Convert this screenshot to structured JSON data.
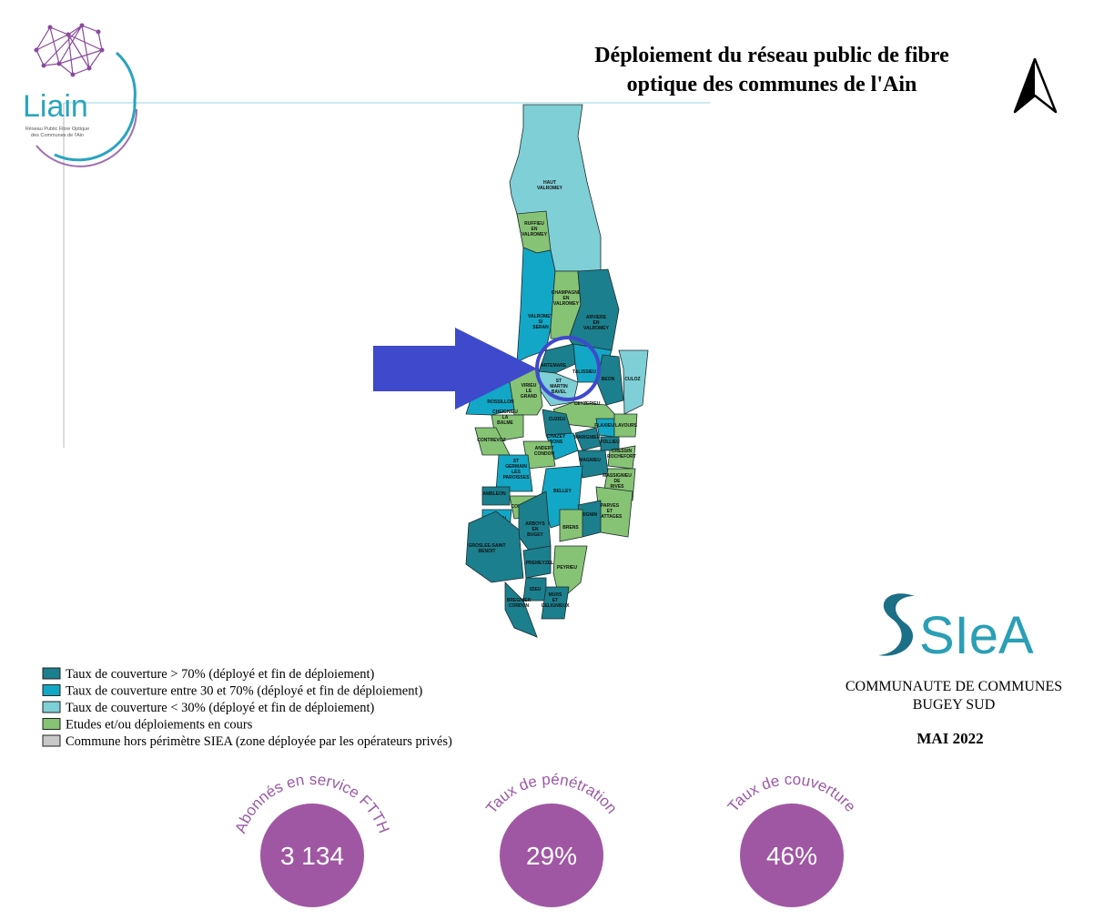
{
  "header": {
    "title_lines": [
      "Déploiement du réseau public de fibre",
      "optique des communes de l'Ain"
    ]
  },
  "logo": {
    "name": "Liain",
    "tagline_lines": [
      "Réseau Public Fibre Optique",
      "des Communes de l'Ain"
    ]
  },
  "map": {
    "communes": [
      {
        "lines": [
          "HAUT",
          "VALROMEY"
        ],
        "color": "#7fcfd6"
      },
      {
        "lines": [
          "RUFFIEU",
          "EN",
          "VALROMEY"
        ],
        "color": "#86c374"
      },
      {
        "lines": [
          "VALROMEY",
          "S/",
          "SERAN"
        ],
        "color": "#12a7c6"
      },
      {
        "lines": [
          "CHAMPAGNE",
          "EN",
          "VALROMEY"
        ],
        "color": "#86c374"
      },
      {
        "lines": [
          "ARVIERE",
          "EN",
          "VALROMEY"
        ],
        "color": "#1b7f8e"
      },
      {
        "lines": [
          "ARTEMARE"
        ],
        "color": "#1b7f8e"
      },
      {
        "lines": [
          "TALISSIEU"
        ],
        "color": "#12a7c6"
      },
      {
        "lines": [
          "BEON"
        ],
        "color": "#1b7f8e"
      },
      {
        "lines": [
          "CULOZ"
        ],
        "color": "#7fcfd6"
      },
      {
        "lines": [
          "ST",
          "MARTIN",
          "BAVEL"
        ],
        "color": "#7fcfd6"
      },
      {
        "lines": [
          "VIRIEU",
          "LE",
          "GRAND"
        ],
        "color": "#86c374"
      },
      {
        "lines": [
          "ROSSILLON"
        ],
        "color": "#12a7c6"
      },
      {
        "lines": [
          "CHEIGNIEU",
          "LA",
          "BALME"
        ],
        "color": "#86c374"
      },
      {
        "lines": [
          "CEYZERIEU"
        ],
        "color": "#86c374"
      },
      {
        "lines": [
          "CUZIEU"
        ],
        "color": "#1b7f8e"
      },
      {
        "lines": [
          "CONTREVOZ"
        ],
        "color": "#86c374"
      },
      {
        "lines": [
          "CHAZEY",
          "BONS"
        ],
        "color": "#12a7c6"
      },
      {
        "lines": [
          "ANDERT",
          "CONDON"
        ],
        "color": "#86c374"
      },
      {
        "lines": [
          "MARIGNIEU"
        ],
        "color": "#1b7f8e"
      },
      {
        "lines": [
          "FLAXIEU"
        ],
        "color": "#12a7c6"
      },
      {
        "lines": [
          "LAVOURS"
        ],
        "color": "#86c374"
      },
      {
        "lines": [
          "POLLIEU"
        ],
        "color": "#1b7f8e"
      },
      {
        "lines": [
          "CRESSIN",
          "ROCHEFORT"
        ],
        "color": "#86c374"
      },
      {
        "lines": [
          "MAGNIEU"
        ],
        "color": "#1b7f8e"
      },
      {
        "lines": [
          "ST",
          "GERMAIN",
          "LES",
          "PAROISSES"
        ],
        "color": "#12a7c6"
      },
      {
        "lines": [
          "MASSIGNIEU",
          "DE",
          "RIVES"
        ],
        "color": "#86c374"
      },
      {
        "lines": [
          "BELLEY"
        ],
        "color": "#12a7c6"
      },
      {
        "lines": [
          "AMBLEON"
        ],
        "color": "#1b7f8e"
      },
      {
        "lines": [
          "COLOMIEU"
        ],
        "color": "#86c374"
      },
      {
        "lines": [
          "PARVES",
          "ET",
          "NATTAGES"
        ],
        "color": "#86c374"
      },
      {
        "lines": [
          "CONZIEU"
        ],
        "color": "#12a7c6"
      },
      {
        "lines": [
          "VIRIGNIN"
        ],
        "color": "#1b7f8e"
      },
      {
        "lines": [
          "BRENS"
        ],
        "color": "#86c374"
      },
      {
        "lines": [
          "ARBOYS",
          "EN",
          "BUGEY"
        ],
        "color": "#1b7f8e"
      },
      {
        "lines": [
          "GROSLEE-SAINT",
          "BENOIT"
        ],
        "color": "#1b7f8e"
      },
      {
        "lines": [
          "PREMEYZEL"
        ],
        "color": "#1b7f8e"
      },
      {
        "lines": [
          "PEYRIEU"
        ],
        "color": "#86c374"
      },
      {
        "lines": [
          "IZIEU"
        ],
        "color": "#1b7f8e"
      },
      {
        "lines": [
          "BREGNIER",
          "CORDON"
        ],
        "color": "#1b7f8e"
      },
      {
        "lines": [
          "MURS",
          "ET",
          "GELIGNIEUX"
        ],
        "color": "#1b7f8e"
      }
    ]
  },
  "legend": [
    {
      "label": "Taux de couverture > 70% (déployé et fin de déploiement)",
      "color": "#1b7f8e"
    },
    {
      "label": "Taux de couverture entre 30 et 70% (déployé et fin de déploiement)",
      "color": "#12a7c6"
    },
    {
      "label": "Taux de couverture < 30% (déployé et fin de déploiement)",
      "color": "#7fcfd6"
    },
    {
      "label": "Etudes et/ou déploiements en cours",
      "color": "#86c374"
    },
    {
      "label": "Commune hors périmètre SIEA (zone déployée par les opérateurs privés)",
      "color": "#c8c8c8"
    }
  ],
  "siea": {
    "logo_text": "SIeA",
    "org_lines": [
      "COMMUNAUTE DE COMMUNES",
      "BUGEY SUD"
    ],
    "date": "MAI 2022"
  },
  "stats": [
    {
      "label": "Abonnés en service FTTH",
      "value": "3 134"
    },
    {
      "label": "Taux de pénétration",
      "value": "29%"
    },
    {
      "label": "Taux de couverture",
      "value": "46%"
    }
  ]
}
